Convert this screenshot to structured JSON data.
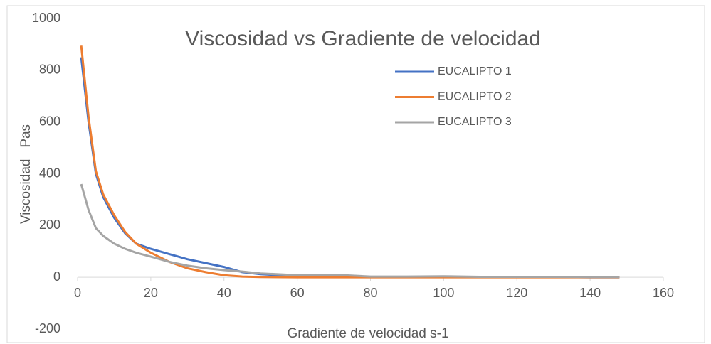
{
  "chart_data": {
    "type": "line",
    "title": "Viscosidad vs Gradiente de velocidad",
    "xlabel": "Gradiente de velocidad s-1",
    "ylabel": "Viscosidad   Pas",
    "x": [
      1,
      3,
      5,
      7,
      10,
      13,
      16,
      20,
      25,
      30,
      35,
      40,
      45,
      50,
      60,
      70,
      80,
      90,
      100,
      110,
      120,
      130,
      140,
      148
    ],
    "series": [
      {
        "name": "EUCALIPTO 1",
        "color": "#4472c4",
        "values": [
          850,
          600,
          400,
          310,
          230,
          170,
          130,
          110,
          90,
          70,
          55,
          40,
          20,
          12,
          5,
          3,
          2,
          2,
          2,
          1,
          1,
          1,
          0,
          0
        ]
      },
      {
        "name": "EUCALIPTO 2",
        "color": "#ed7d31",
        "values": [
          895,
          620,
          410,
          320,
          240,
          175,
          130,
          95,
          60,
          35,
          20,
          8,
          3,
          1,
          0,
          0,
          0,
          0,
          0,
          0,
          0,
          0,
          0,
          0
        ]
      },
      {
        "name": "EUCALIPTO 3",
        "color": "#a5a5a5",
        "values": [
          360,
          260,
          190,
          160,
          130,
          110,
          95,
          80,
          60,
          45,
          35,
          28,
          22,
          15,
          8,
          10,
          3,
          3,
          4,
          2,
          2,
          2,
          1,
          1
        ]
      }
    ],
    "xlim": [
      0,
      160
    ],
    "xticks": [
      0,
      20,
      40,
      60,
      80,
      100,
      120,
      140,
      160
    ],
    "ylim": [
      -200,
      1000
    ],
    "yticks": [
      -200,
      0,
      200,
      400,
      600,
      800,
      1000
    ],
    "grid": false,
    "legend": "upper right"
  }
}
